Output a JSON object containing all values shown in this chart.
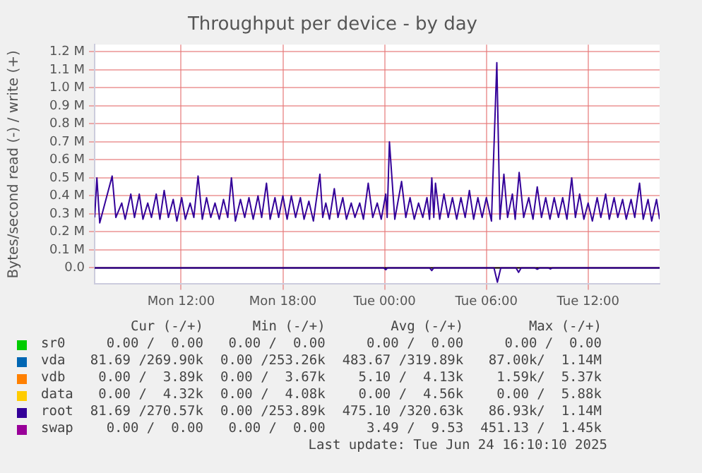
{
  "chart_data": {
    "type": "line",
    "title": "Throughput per device - by day",
    "ylabel": "Bytes/second read (-) / write (+)",
    "xlim": [
      "2025-06-23T06:54",
      "2025-06-24T16:13"
    ],
    "xticks": [
      {
        "value": "2025-06-23T12:00",
        "label": "Mon 12:00"
      },
      {
        "value": "2025-06-23T18:00",
        "label": "Mon 18:00"
      },
      {
        "value": "2025-06-24T00:00",
        "label": "Tue 00:00"
      },
      {
        "value": "2025-06-24T06:00",
        "label": "Tue 06:00"
      },
      {
        "value": "2025-06-24T12:00",
        "label": "Tue 12:00"
      }
    ],
    "ylim": [
      -0.09,
      1.24
    ],
    "yticks": [
      {
        "value": 0,
        "label": "0.0"
      },
      {
        "value": 0.1,
        "label": "0.1 M"
      },
      {
        "value": 0.2,
        "label": "0.2 M"
      },
      {
        "value": 0.3,
        "label": "0.3 M"
      },
      {
        "value": 0.4,
        "label": "0.4 M"
      },
      {
        "value": 0.5,
        "label": "0.5 M"
      },
      {
        "value": 0.6,
        "label": "0.6 M"
      },
      {
        "value": 0.7,
        "label": "0.7 M"
      },
      {
        "value": 0.8,
        "label": "0.8 M"
      },
      {
        "value": 0.9,
        "label": "0.9 M"
      },
      {
        "value": 1.0,
        "label": "1.0 M"
      },
      {
        "value": 1.1,
        "label": "1.1 M"
      },
      {
        "value": 1.2,
        "label": "1.2 M"
      }
    ],
    "grid": true,
    "legend": "bottom",
    "marker": "none",
    "line_style": "solid",
    "ref_lines": [
      {
        "axis": "y",
        "value": 0,
        "color": "#000000"
      }
    ],
    "series": [
      {
        "name": "sr0",
        "color": "#00cc00"
      },
      {
        "name": "vda",
        "color": "#0066b3"
      },
      {
        "name": "vdb",
        "color": "#ff8000"
      },
      {
        "name": "data",
        "color": "#ffcc00"
      },
      {
        "name": "root",
        "color": "#330099",
        "x": [
          "2025-06-23T06:54",
          "2025-06-23T07:02",
          "2025-06-23T07:12",
          "2025-06-23T07:56",
          "2025-06-23T08:09",
          "2025-06-23T08:30",
          "2025-06-23T08:42",
          "2025-06-23T09:02",
          "2025-06-23T09:15",
          "2025-06-23T09:32",
          "2025-06-23T09:45",
          "2025-06-23T10:02",
          "2025-06-23T10:15",
          "2025-06-23T10:32",
          "2025-06-23T10:45",
          "2025-06-23T11:00",
          "2025-06-23T11:15",
          "2025-06-23T11:32",
          "2025-06-23T11:45",
          "2025-06-23T12:02",
          "2025-06-23T12:15",
          "2025-06-23T12:32",
          "2025-06-23T12:45",
          "2025-06-23T13:00",
          "2025-06-23T13:15",
          "2025-06-23T13:30",
          "2025-06-23T13:45",
          "2025-06-23T14:00",
          "2025-06-23T14:15",
          "2025-06-23T14:30",
          "2025-06-23T14:45",
          "2025-06-23T14:58",
          "2025-06-23T15:12",
          "2025-06-23T15:30",
          "2025-06-23T15:45",
          "2025-06-23T16:00",
          "2025-06-23T16:15",
          "2025-06-23T16:32",
          "2025-06-23T16:45",
          "2025-06-23T17:02",
          "2025-06-23T17:15",
          "2025-06-23T17:32",
          "2025-06-23T17:45",
          "2025-06-23T18:00",
          "2025-06-23T18:15",
          "2025-06-23T18:30",
          "2025-06-23T18:45",
          "2025-06-23T19:02",
          "2025-06-23T19:15",
          "2025-06-23T19:32",
          "2025-06-23T19:48",
          "2025-06-23T20:11",
          "2025-06-23T20:21",
          "2025-06-23T20:32",
          "2025-06-23T20:45",
          "2025-06-23T21:02",
          "2025-06-23T21:15",
          "2025-06-23T21:32",
          "2025-06-23T21:45",
          "2025-06-23T22:02",
          "2025-06-23T22:15",
          "2025-06-23T22:32",
          "2025-06-23T22:45",
          "2025-06-23T23:02",
          "2025-06-23T23:18",
          "2025-06-23T23:34",
          "2025-06-23T23:48",
          "2025-06-24T00:04",
          "2025-06-24T00:09",
          "2025-06-24T00:17",
          "2025-06-24T00:36",
          "2025-06-24T01:00",
          "2025-06-24T01:15",
          "2025-06-24T01:30",
          "2025-06-24T01:45",
          "2025-06-24T02:00",
          "2025-06-24T02:15",
          "2025-06-24T02:30",
          "2025-06-24T02:39",
          "2025-06-24T02:47",
          "2025-06-24T02:54",
          "2025-06-24T03:00",
          "2025-06-24T03:15",
          "2025-06-24T03:30",
          "2025-06-24T03:45",
          "2025-06-24T04:00",
          "2025-06-24T04:15",
          "2025-06-24T04:30",
          "2025-06-24T04:45",
          "2025-06-24T05:00",
          "2025-06-24T05:15",
          "2025-06-24T05:30",
          "2025-06-24T05:45",
          "2025-06-24T06:00",
          "2025-06-24T06:18",
          "2025-06-24T06:37",
          "2025-06-24T06:48",
          "2025-06-24T07:02",
          "2025-06-24T07:15",
          "2025-06-24T07:32",
          "2025-06-24T07:42",
          "2025-06-24T07:56",
          "2025-06-24T08:12",
          "2025-06-24T08:30",
          "2025-06-24T08:45",
          "2025-06-24T09:00",
          "2025-06-24T09:15",
          "2025-06-24T09:30",
          "2025-06-24T09:45",
          "2025-06-24T10:00",
          "2025-06-24T10:15",
          "2025-06-24T10:30",
          "2025-06-24T10:45",
          "2025-06-24T11:02",
          "2025-06-24T11:15",
          "2025-06-24T11:30",
          "2025-06-24T11:45",
          "2025-06-24T12:00",
          "2025-06-24T12:15",
          "2025-06-24T12:32",
          "2025-06-24T12:45",
          "2025-06-24T13:02",
          "2025-06-24T13:15",
          "2025-06-24T13:32",
          "2025-06-24T13:45",
          "2025-06-24T14:02",
          "2025-06-24T14:15",
          "2025-06-24T14:32",
          "2025-06-24T14:45",
          "2025-06-24T15:02",
          "2025-06-24T15:15",
          "2025-06-24T15:32",
          "2025-06-24T15:45",
          "2025-06-24T16:02",
          "2025-06-24T16:13"
        ],
        "values": [
          0.28,
          0.5,
          0.25,
          0.51,
          0.28,
          0.36,
          0.27,
          0.41,
          0.28,
          0.41,
          0.27,
          0.36,
          0.28,
          0.41,
          0.27,
          0.43,
          0.28,
          0.38,
          0.26,
          0.39,
          0.27,
          0.36,
          0.28,
          0.51,
          0.27,
          0.39,
          0.28,
          0.36,
          0.27,
          0.38,
          0.28,
          0.5,
          0.26,
          0.38,
          0.28,
          0.39,
          0.27,
          0.4,
          0.28,
          0.47,
          0.27,
          0.39,
          0.28,
          0.4,
          0.27,
          0.4,
          0.28,
          0.39,
          0.27,
          0.37,
          0.26,
          0.52,
          0.28,
          0.36,
          0.27,
          0.44,
          0.28,
          0.39,
          0.27,
          0.36,
          0.28,
          0.36,
          0.27,
          0.47,
          0.28,
          0.36,
          0.27,
          0.41,
          0.28,
          0.7,
          0.27,
          0.48,
          0.28,
          0.39,
          0.27,
          0.36,
          0.28,
          0.39,
          0.27,
          0.5,
          0.28,
          0.47,
          0.27,
          0.41,
          0.28,
          0.39,
          0.27,
          0.39,
          0.28,
          0.43,
          0.27,
          0.39,
          0.28,
          0.39,
          0.26,
          1.14,
          0.27,
          0.52,
          0.28,
          0.41,
          0.27,
          0.53,
          0.28,
          0.39,
          0.27,
          0.45,
          0.28,
          0.39,
          0.27,
          0.39,
          0.28,
          0.39,
          0.27,
          0.5,
          0.28,
          0.41,
          0.27,
          0.36,
          0.26,
          0.39,
          0.28,
          0.41,
          0.27,
          0.39,
          0.28,
          0.38,
          0.27,
          0.38,
          0.28,
          0.47,
          0.27,
          0.38,
          0.26,
          0.38,
          0.27
        ]
      },
      {
        "color": "#330099",
        "x": [
          "2025-06-23T06:54",
          "2025-06-23T23:57",
          "2025-06-24T00:04",
          "2025-06-24T00:10",
          "2025-06-24T02:39",
          "2025-06-24T02:47",
          "2025-06-24T02:54",
          "2025-06-24T06:27",
          "2025-06-24T06:39",
          "2025-06-24T06:51",
          "2025-06-24T07:45",
          "2025-06-24T07:54",
          "2025-06-24T08:03",
          "2025-06-24T08:51",
          "2025-06-24T09:00",
          "2025-06-24T09:09",
          "2025-06-24T09:39",
          "2025-06-24T09:47",
          "2025-06-24T09:54",
          "2025-06-24T16:13"
        ],
        "values": [
          0,
          0,
          -0.01,
          0,
          0,
          -0.015,
          0,
          0,
          -0.08,
          0,
          0,
          -0.025,
          0,
          0,
          -0.008,
          0,
          0,
          -0.006,
          0,
          0
        ]
      },
      {
        "name": "swap",
        "color": "#990099"
      }
    ],
    "annotations": [
      "Cur (-/+)",
      "Min (-/+)",
      "Avg (-/+)",
      "Max (-/+)",
      "0.00 /  0.00",
      "0.00 /  0.00",
      "0.00 /  0.00",
      "0.00 /  0.00",
      "81.69 /269.90k",
      "0.00 /253.26k",
      "483.67 /319.89k",
      "87.00k/  1.14M",
      "0.00 /  3.89k",
      "0.00 /  3.67k",
      "5.10 /  4.13k",
      "1.59k/  5.37k",
      "0.00 /  4.32k",
      "0.00 /  4.08k",
      "0.00 /  4.56k",
      "0.00 /  5.88k",
      "81.69 /270.57k",
      "0.00 /253.89k",
      "475.10 /320.63k",
      "86.93k/  1.14M",
      "0.00 /  0.00",
      "0.00 /  0.00",
      "3.49 /  9.53",
      "451.13 /  1.45k",
      "Last update: Tue Jun 24 16:10:10 2025"
    ]
  }
}
